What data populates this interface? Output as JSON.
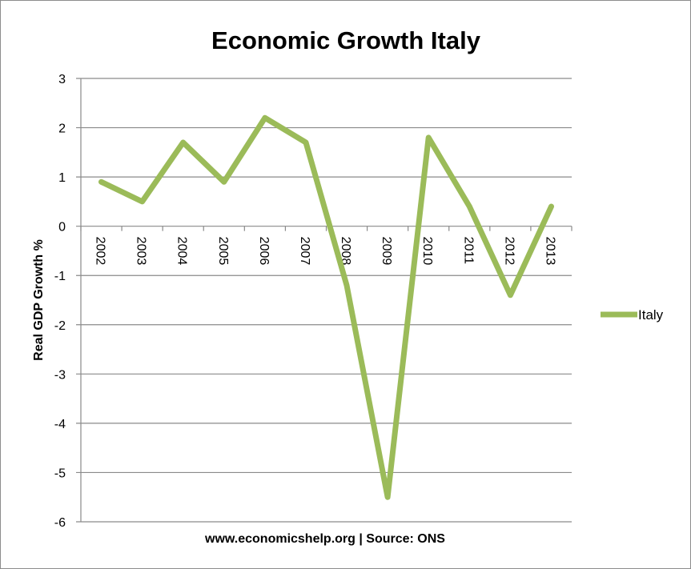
{
  "chart_data": {
    "type": "line",
    "title": "Economic Growth Italy",
    "xlabel": "",
    "ylabel": "Real GDP Growth %",
    "categories": [
      "2002",
      "2003",
      "2004",
      "2005",
      "2006",
      "2007",
      "2008",
      "2009",
      "2010",
      "2011",
      "2012",
      "2013"
    ],
    "series": [
      {
        "name": "Italy",
        "values": [
          0.9,
          0.5,
          1.7,
          0.9,
          2.2,
          1.7,
          -1.2,
          -5.5,
          1.8,
          0.4,
          -1.4,
          0.4
        ],
        "color": "#9bbb59"
      }
    ],
    "ylim": [
      -6,
      3
    ],
    "yticks": [
      "3",
      "2",
      "1",
      "0",
      "-1",
      "-2",
      "-3",
      "-4",
      "-5",
      "-6"
    ],
    "grid": true,
    "legend_position": "right",
    "caption": "www.economicshelp.org | Source: ONS"
  }
}
